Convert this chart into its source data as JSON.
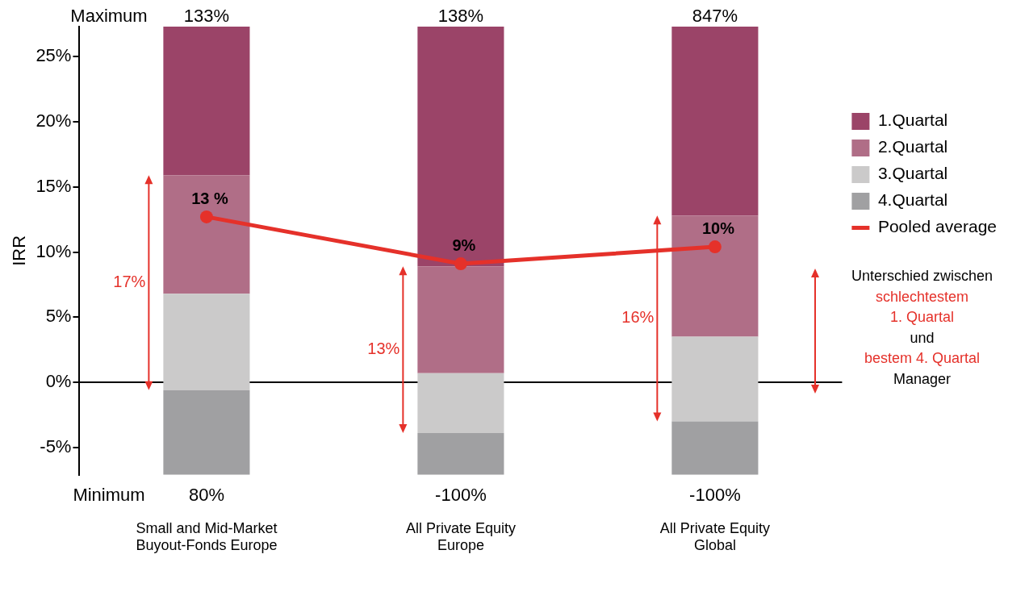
{
  "chart_data": {
    "type": "bar",
    "ylabel": "IRR",
    "categories": [
      "Small and Mid-Market\nBuyout-Fonds Europe",
      "All Private Equity\nEurope",
      "All Private Equity\nGlobal"
    ],
    "series": [
      {
        "name": "4.Quartal",
        "color": "#a0a0a2",
        "base": [
          -7.1,
          -7.1,
          -7.1
        ],
        "values": [
          6.5,
          3.2,
          4.1
        ]
      },
      {
        "name": "3.Quartal",
        "color": "#cbcaca",
        "base": [
          -0.6,
          -3.9,
          -3.0
        ],
        "values": [
          7.4,
          4.6,
          6.5
        ]
      },
      {
        "name": "2.Quartal",
        "color": "#b06e87",
        "base": [
          6.8,
          0.7,
          3.5
        ],
        "values": [
          9.1,
          8.2,
          9.3
        ]
      },
      {
        "name": "1.Quartal",
        "color": "#9b4468",
        "base": [
          15.9,
          8.9,
          12.8
        ],
        "values": [
          11.4,
          18.4,
          14.5
        ]
      },
      {
        "name": "Pooled average",
        "type": "line",
        "color": "#e5312a",
        "values": [
          12.7,
          9.1,
          10.4
        ],
        "value_labels": [
          "13 %",
          "9%",
          "10%"
        ]
      }
    ],
    "ylim": [
      -7.1,
      27.3
    ],
    "yticks": [
      {
        "value": -5,
        "label": "-5%"
      },
      {
        "value": 0,
        "label": "0%"
      },
      {
        "value": 5,
        "label": "5%"
      },
      {
        "value": 10,
        "label": "10%"
      },
      {
        "value": 15,
        "label": "15%"
      },
      {
        "value": 20,
        "label": "20%"
      },
      {
        "value": 25,
        "label": "25%"
      }
    ],
    "ref_lines": [
      {
        "axis": "y",
        "value": 0,
        "color": "#000000"
      }
    ],
    "legend": "right",
    "marker": "circle",
    "annotations": [
      "Maximum",
      "133%",
      "138%",
      "847%",
      "Minimum",
      "80%",
      "-100%",
      "-100%",
      "17%",
      "13%",
      "16%",
      "Unterschied zwischen",
      "schlechtestem",
      "1. Quartal",
      "und",
      "bestem 4. Quartal",
      "Manager"
    ]
  }
}
